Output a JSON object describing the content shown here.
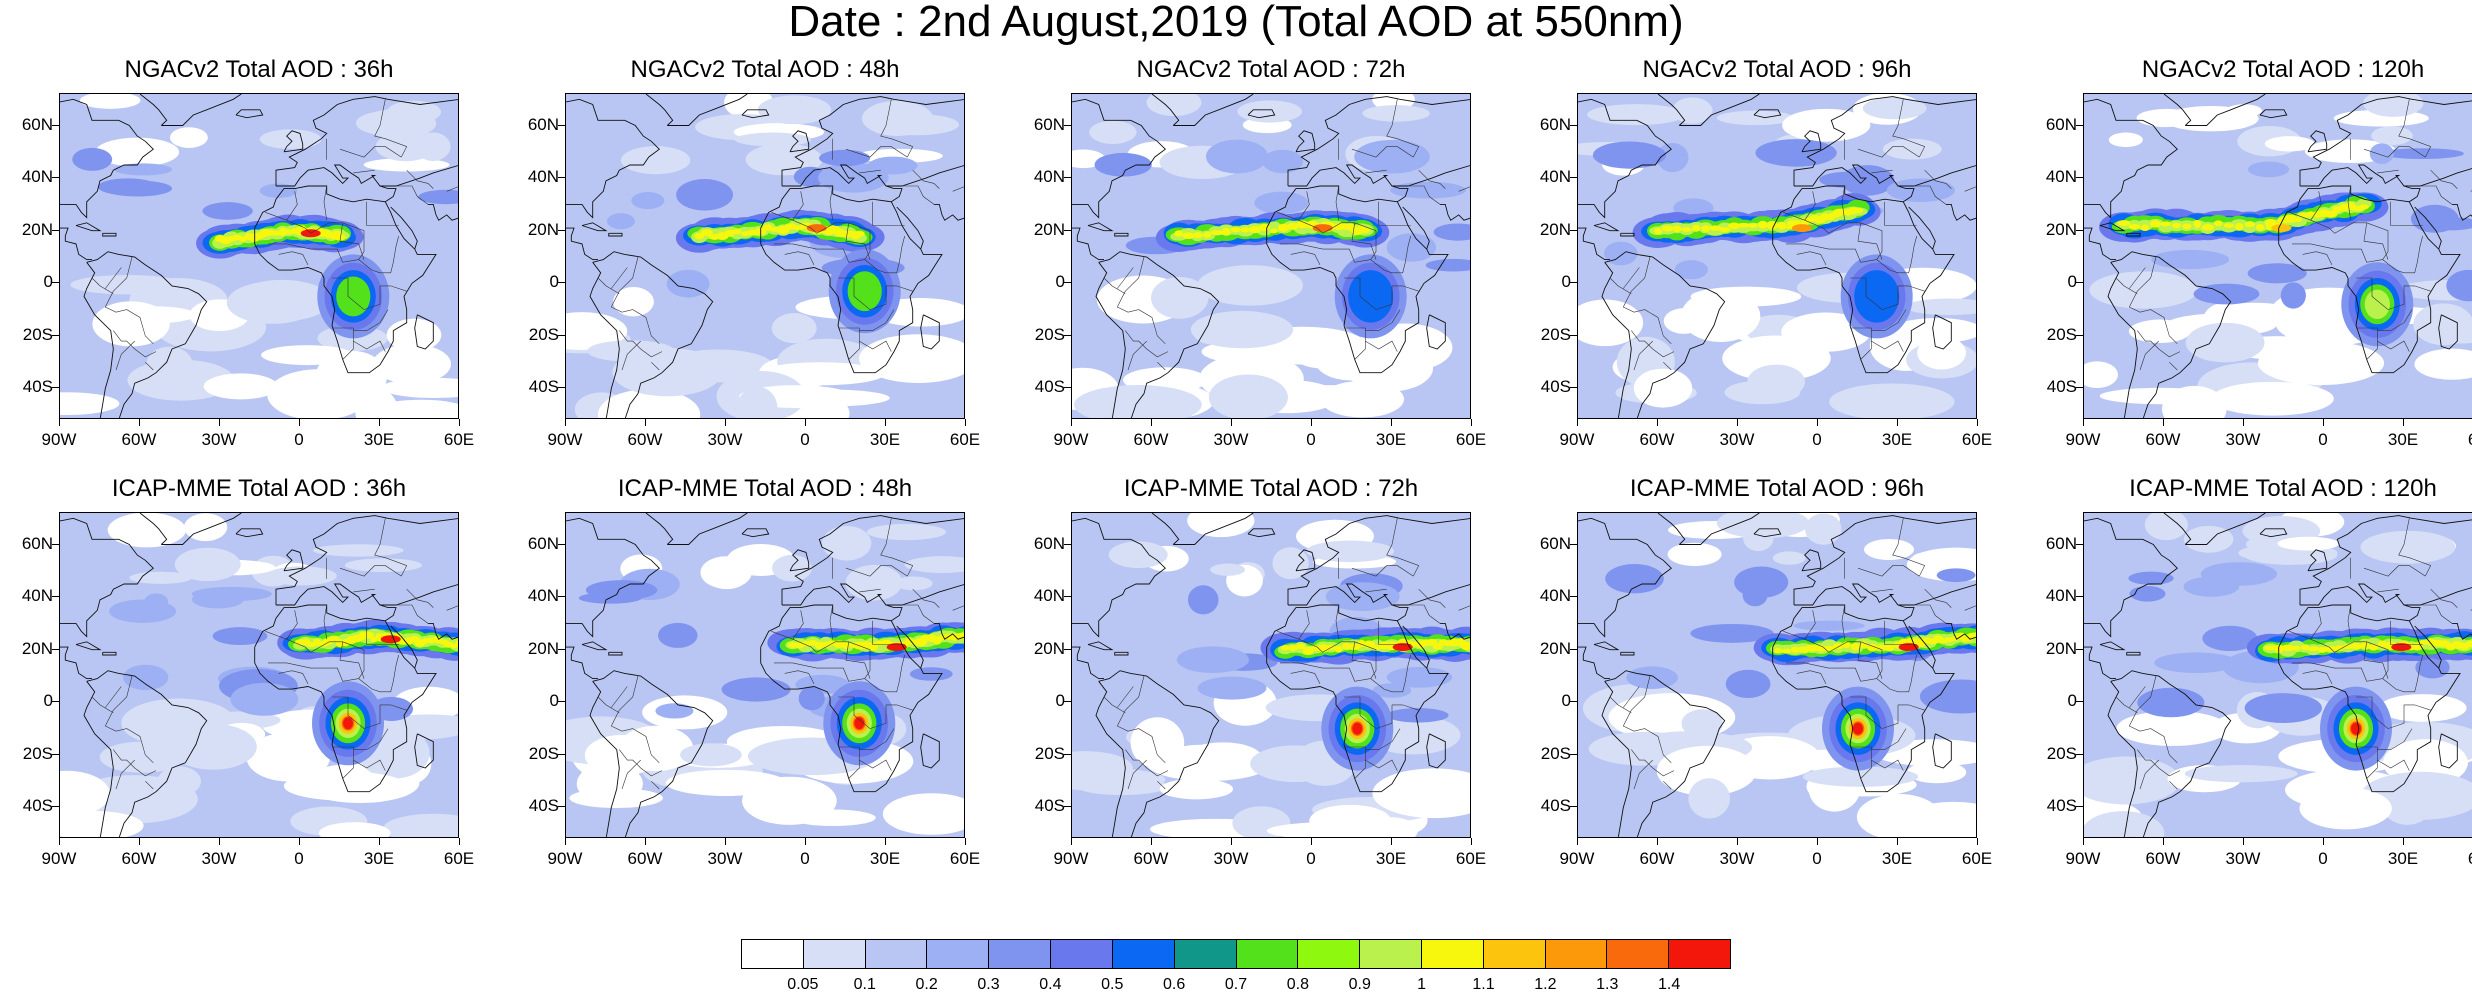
{
  "title": "Date : 2nd August,2019 (Total AOD at 550nm)",
  "lat_labels": [
    "60N",
    "40N",
    "20N",
    "0",
    "20S",
    "40S"
  ],
  "lon_labels": [
    "90W",
    "60W",
    "30W",
    "0",
    "30E",
    "60E"
  ],
  "rows": [
    {
      "model": "NGACv2",
      "panels": [
        {
          "title": "NGACv2 Total AOD : 36h",
          "lead_hours": 36,
          "dust_plume": [
            [
              -30,
              16
            ],
            [
              0,
              20
            ],
            [
              15,
              18
            ]
          ],
          "dust_peak_aod": 1.4,
          "biomass_center": [
            20,
            -5
          ],
          "biomass_peak_aod": 0.8
        },
        {
          "title": "NGACv2 Total AOD : 48h",
          "lead_hours": 48,
          "dust_plume": [
            [
              -40,
              18
            ],
            [
              0,
              22
            ],
            [
              20,
              18
            ]
          ],
          "dust_peak_aod": 1.3,
          "biomass_center": [
            22,
            -3
          ],
          "biomass_peak_aod": 0.7
        },
        {
          "title": "NGACv2 Total AOD : 72h",
          "lead_hours": 72,
          "dust_plume": [
            [
              -50,
              18
            ],
            [
              0,
              22
            ],
            [
              20,
              20
            ]
          ],
          "dust_peak_aod": 1.3,
          "biomass_center": [
            22,
            -5
          ],
          "biomass_peak_aod": 0.5
        },
        {
          "title": "NGACv2 Total AOD : 96h",
          "lead_hours": 96,
          "dust_plume": [
            [
              -60,
              20
            ],
            [
              -10,
              22
            ],
            [
              15,
              28
            ]
          ],
          "dust_peak_aod": 1.2,
          "biomass_center": [
            22,
            -5
          ],
          "biomass_peak_aod": 0.5
        },
        {
          "title": "NGACv2 Total AOD : 120h",
          "lead_hours": 120,
          "dust_plume": [
            [
              -75,
              22
            ],
            [
              -20,
              22
            ],
            [
              15,
              30
            ]
          ],
          "dust_peak_aod": 1.1,
          "biomass_center": [
            20,
            -8
          ],
          "biomass_peak_aod": 0.9
        }
      ]
    },
    {
      "model": "ICAP-MME",
      "panels": [
        {
          "title": "ICAP-MME Total AOD : 36h",
          "lead_hours": 36,
          "dust_plume": [
            [
              0,
              22
            ],
            [
              30,
              25
            ],
            [
              60,
              22
            ]
          ],
          "dust_peak_aod": 1.4,
          "biomass_center": [
            18,
            -8
          ],
          "biomass_peak_aod": 1.4
        },
        {
          "title": "ICAP-MME Total AOD : 48h",
          "lead_hours": 48,
          "dust_plume": [
            [
              -5,
              22
            ],
            [
              30,
              22
            ],
            [
              60,
              25
            ]
          ],
          "dust_peak_aod": 1.4,
          "biomass_center": [
            20,
            -8
          ],
          "biomass_peak_aod": 1.4
        },
        {
          "title": "ICAP-MME Total AOD : 72h",
          "lead_hours": 72,
          "dust_plume": [
            [
              -10,
              20
            ],
            [
              30,
              22
            ],
            [
              60,
              22
            ]
          ],
          "dust_peak_aod": 1.4,
          "biomass_center": [
            17,
            -10
          ],
          "biomass_peak_aod": 1.4
        },
        {
          "title": "ICAP-MME Total AOD : 96h",
          "lead_hours": 96,
          "dust_plume": [
            [
              -15,
              20
            ],
            [
              30,
              22
            ],
            [
              60,
              25
            ]
          ],
          "dust_peak_aod": 1.4,
          "biomass_center": [
            15,
            -10
          ],
          "biomass_peak_aod": 1.4
        },
        {
          "title": "ICAP-MME Total AOD : 120h",
          "lead_hours": 120,
          "dust_plume": [
            [
              -20,
              20
            ],
            [
              25,
              22
            ],
            [
              60,
              22
            ]
          ],
          "dust_peak_aod": 1.4,
          "biomass_center": [
            12,
            -10
          ],
          "biomass_peak_aod": 1.4
        }
      ]
    }
  ],
  "colorbar": {
    "colors": [
      "#ffffff",
      "#d7dff7",
      "#b9c6f3",
      "#9cb0f3",
      "#7f94ef",
      "#6a78ee",
      "#0a68f2",
      "#10978a",
      "#52e11a",
      "#8ef90f",
      "#baf14c",
      "#f6f70d",
      "#fcc40c",
      "#fb990b",
      "#f86a0c",
      "#f3170b"
    ],
    "labels": [
      "0.05",
      "0.1",
      "0.2",
      "0.3",
      "0.4",
      "0.5",
      "0.6",
      "0.7",
      "0.8",
      "0.9",
      "1",
      "1.1",
      "1.2",
      "1.3",
      "1.4"
    ]
  }
}
